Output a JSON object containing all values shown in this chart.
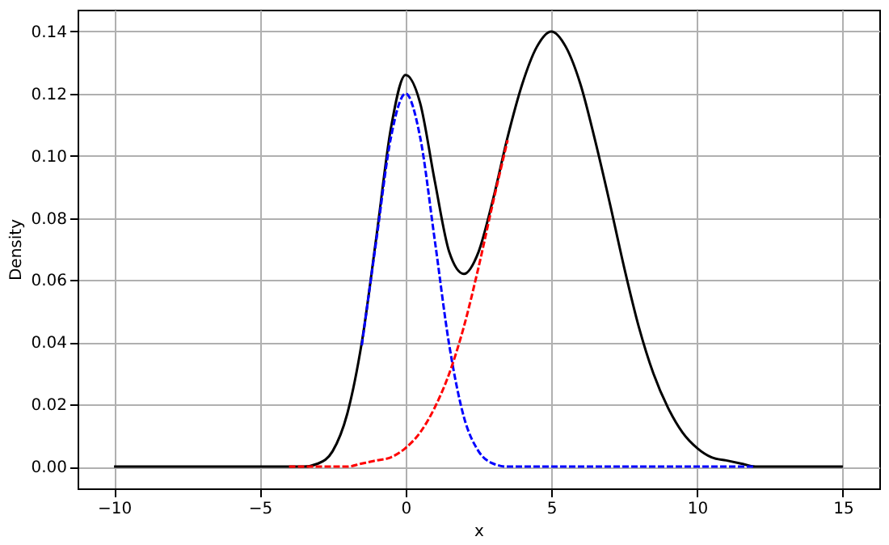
{
  "chart_data": {
    "type": "line",
    "xlabel": "x",
    "ylabel": "Density",
    "xlim": [
      -11.25,
      16.25
    ],
    "ylim": [
      -0.007,
      0.147
    ],
    "xticks": [
      {
        "value": -10,
        "label": "−10"
      },
      {
        "value": -5,
        "label": "−5"
      },
      0,
      5,
      10,
      15
    ],
    "yticks": [
      {
        "value": 0,
        "label": "0.00"
      },
      {
        "value": 0.02,
        "label": "0.02"
      },
      {
        "value": 0.04,
        "label": "0.04"
      },
      {
        "value": 0.06,
        "label": "0.06"
      },
      {
        "value": 0.08,
        "label": "0.08"
      },
      {
        "value": 0.1,
        "label": "0.10"
      },
      {
        "value": 0.12,
        "label": "0.12"
      },
      {
        "value": 0.14,
        "label": "0.14"
      }
    ],
    "grid": true,
    "marker": "none",
    "series": [
      {
        "color": "#ff0000",
        "line_style": "dashed",
        "x": [
          -4,
          -3.5,
          -3,
          -2.5,
          -2,
          -1.5,
          -1,
          -0.5,
          0,
          0.5,
          1,
          1.5,
          2,
          2.5,
          3,
          3.5
        ],
        "values": [
          0,
          0,
          0,
          0,
          0,
          0.001,
          0.002,
          0.003,
          0.006,
          0.011,
          0.019,
          0.03,
          0.045,
          0.064,
          0.085,
          0.105
        ]
      },
      {
        "color": "#0000ff",
        "line_style": "dashed",
        "x": [
          -1.5,
          -1,
          -0.5,
          0,
          0.5,
          1,
          1.5,
          2,
          2.5,
          3,
          3.5,
          4,
          4.5,
          5,
          5.5,
          6,
          6.5,
          7,
          7.5,
          8,
          8.5,
          9,
          9.5,
          10,
          10.5,
          11,
          11.5,
          12
        ],
        "values": [
          0.039,
          0.073,
          0.106,
          0.12,
          0.106,
          0.073,
          0.039,
          0.016,
          0.005,
          0.001,
          0,
          0,
          0,
          0,
          0,
          0,
          0,
          0,
          0,
          0,
          0,
          0,
          0,
          0,
          0,
          0,
          0,
          0
        ]
      },
      {
        "color": "#000000",
        "line_style": "solid",
        "x": [
          -10,
          -9.5,
          -9,
          -8.5,
          -8,
          -7.5,
          -7,
          -6.5,
          -6,
          -5.5,
          -5,
          -4.5,
          -4,
          -3.5,
          -3,
          -2.5,
          -2,
          -1.5,
          -1,
          -0.5,
          0,
          0.5,
          1,
          1.5,
          2,
          2.5,
          3,
          3.5,
          4,
          4.5,
          5,
          5.5,
          6,
          6.5,
          7,
          7.5,
          8,
          8.5,
          9,
          9.5,
          10,
          10.5,
          11,
          11.5,
          12,
          12.5,
          13,
          13.5,
          14,
          14.5,
          15
        ],
        "values": [
          0,
          0,
          0,
          0,
          0,
          0,
          0,
          0,
          0,
          0,
          0,
          0,
          0,
          0,
          0.001,
          0.005,
          0.017,
          0.04,
          0.074,
          0.109,
          0.126,
          0.117,
          0.092,
          0.069,
          0.062,
          0.069,
          0.086,
          0.106,
          0.123,
          0.135,
          0.14,
          0.135,
          0.123,
          0.105,
          0.085,
          0.064,
          0.045,
          0.03,
          0.019,
          0.011,
          0.006,
          0.003,
          0.002,
          0.001,
          0,
          0,
          0,
          0,
          0,
          0,
          0
        ]
      }
    ]
  }
}
